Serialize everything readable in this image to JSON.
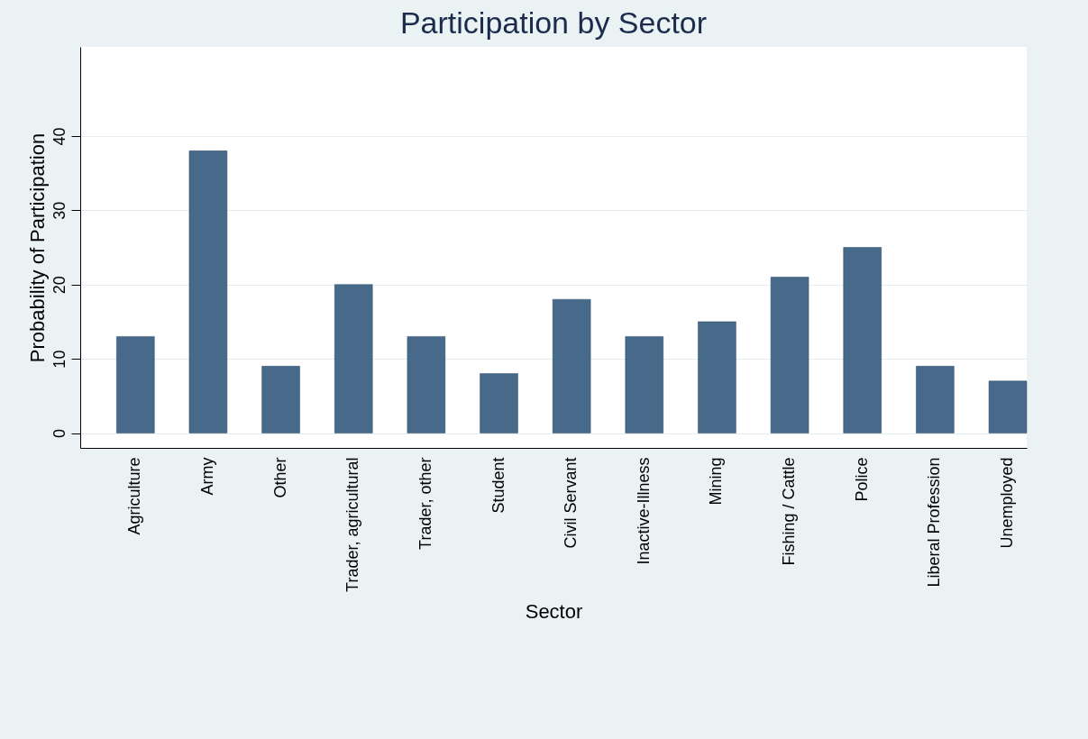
{
  "chart_data": {
    "type": "bar",
    "title": "Participation by Sector",
    "xlabel": "Sector",
    "ylabel": "Probability of Participation",
    "categories": [
      "Agriculture",
      "Army",
      "Other",
      "Trader, agricultural",
      "Trader, other",
      "Student",
      "Civil Servant",
      "Inactive-Illness",
      "Mining",
      "Fishing / Cattle",
      "Police",
      "Liberal Profession",
      "Unemployed"
    ],
    "values": [
      13,
      38,
      9,
      20,
      13,
      8,
      18,
      13,
      15,
      21,
      25,
      9,
      7
    ],
    "color": "#476a8a",
    "ylim": [
      -2,
      52
    ],
    "yticks": [
      0,
      10,
      20,
      30,
      40
    ],
    "grid": "y"
  }
}
